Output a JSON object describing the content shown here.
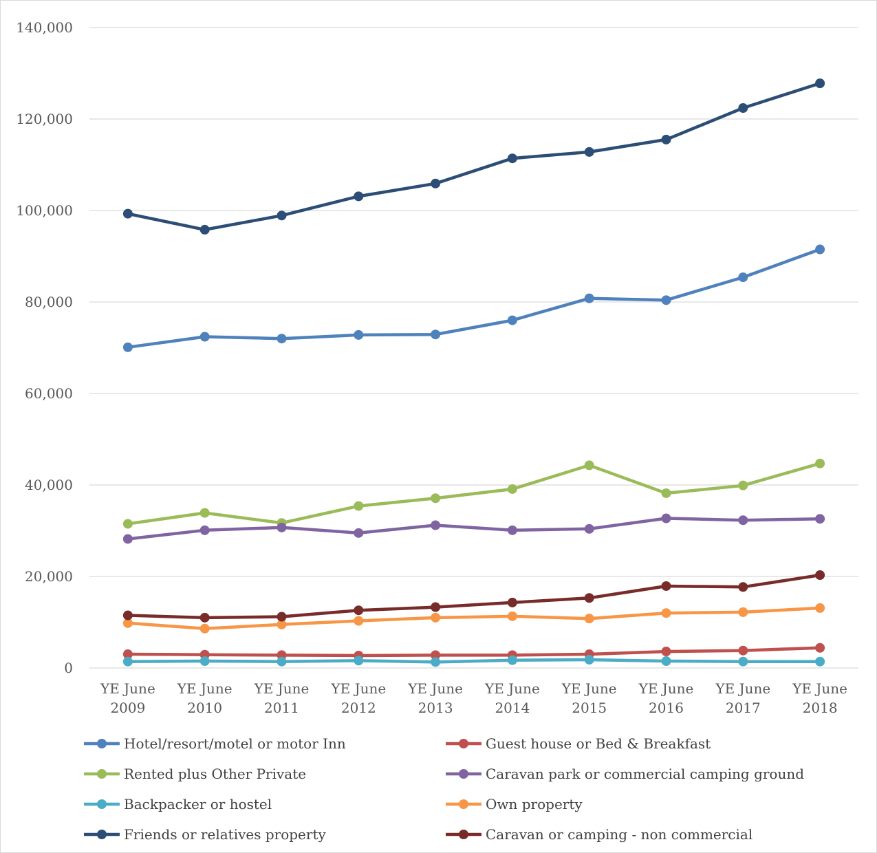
{
  "chart_data": {
    "type": "line",
    "title": "",
    "xlabel": "",
    "ylabel": "",
    "ylim": [
      0,
      140000
    ],
    "yticks": [
      0,
      20000,
      40000,
      60000,
      80000,
      100000,
      120000,
      140000
    ],
    "ytick_labels": [
      "0",
      "20,000",
      "40,000",
      "60,000",
      "80,000",
      "100,000",
      "120,000",
      "140,000"
    ],
    "grid": true,
    "legend_position": "bottom",
    "categories": [
      [
        "YE June",
        "2009"
      ],
      [
        "YE June",
        "2010"
      ],
      [
        "YE June",
        "2011"
      ],
      [
        "YE June",
        "2012"
      ],
      [
        "YE June",
        "2013"
      ],
      [
        "YE June",
        "2014"
      ],
      [
        "YE June",
        "2015"
      ],
      [
        "YE June",
        "2016"
      ],
      [
        "YE June",
        "2017"
      ],
      [
        "YE June",
        "2018"
      ]
    ],
    "series": [
      {
        "name": "Hotel/resort/motel or motor Inn",
        "color": "#4f81bd",
        "values": [
          70100,
          72400,
          72000,
          72800,
          72900,
          76000,
          80800,
          80400,
          85400,
          91500
        ]
      },
      {
        "name": "Guest house or Bed & Breakfast",
        "color": "#c0504d",
        "values": [
          3000,
          2900,
          2800,
          2700,
          2800,
          2800,
          3000,
          3600,
          3800,
          4400
        ]
      },
      {
        "name": "Rented plus Other Private",
        "color": "#9bbb59",
        "values": [
          31500,
          33900,
          31700,
          35400,
          37100,
          39100,
          44300,
          38200,
          39900,
          44700
        ]
      },
      {
        "name": "Caravan park or commercial camping ground",
        "color": "#8064a2",
        "values": [
          28200,
          30100,
          30700,
          29500,
          31200,
          30100,
          30400,
          32700,
          32300,
          32600
        ]
      },
      {
        "name": "Backpacker or hostel",
        "color": "#4bacc6",
        "values": [
          1400,
          1500,
          1400,
          1600,
          1300,
          1700,
          1800,
          1500,
          1400,
          1400
        ]
      },
      {
        "name": "Own property",
        "color": "#f79646",
        "values": [
          9800,
          8600,
          9500,
          10300,
          11000,
          11300,
          10800,
          12000,
          12200,
          13100
        ]
      },
      {
        "name": "Friends or relatives property",
        "color": "#2c4d75",
        "values": [
          99300,
          95800,
          98900,
          103100,
          105900,
          111400,
          112800,
          115500,
          122400,
          127800
        ]
      },
      {
        "name": "Caravan or camping - non commercial",
        "color": "#772c2a",
        "values": [
          11500,
          11000,
          11200,
          12600,
          13300,
          14300,
          15300,
          17900,
          17700,
          20300
        ]
      }
    ]
  }
}
